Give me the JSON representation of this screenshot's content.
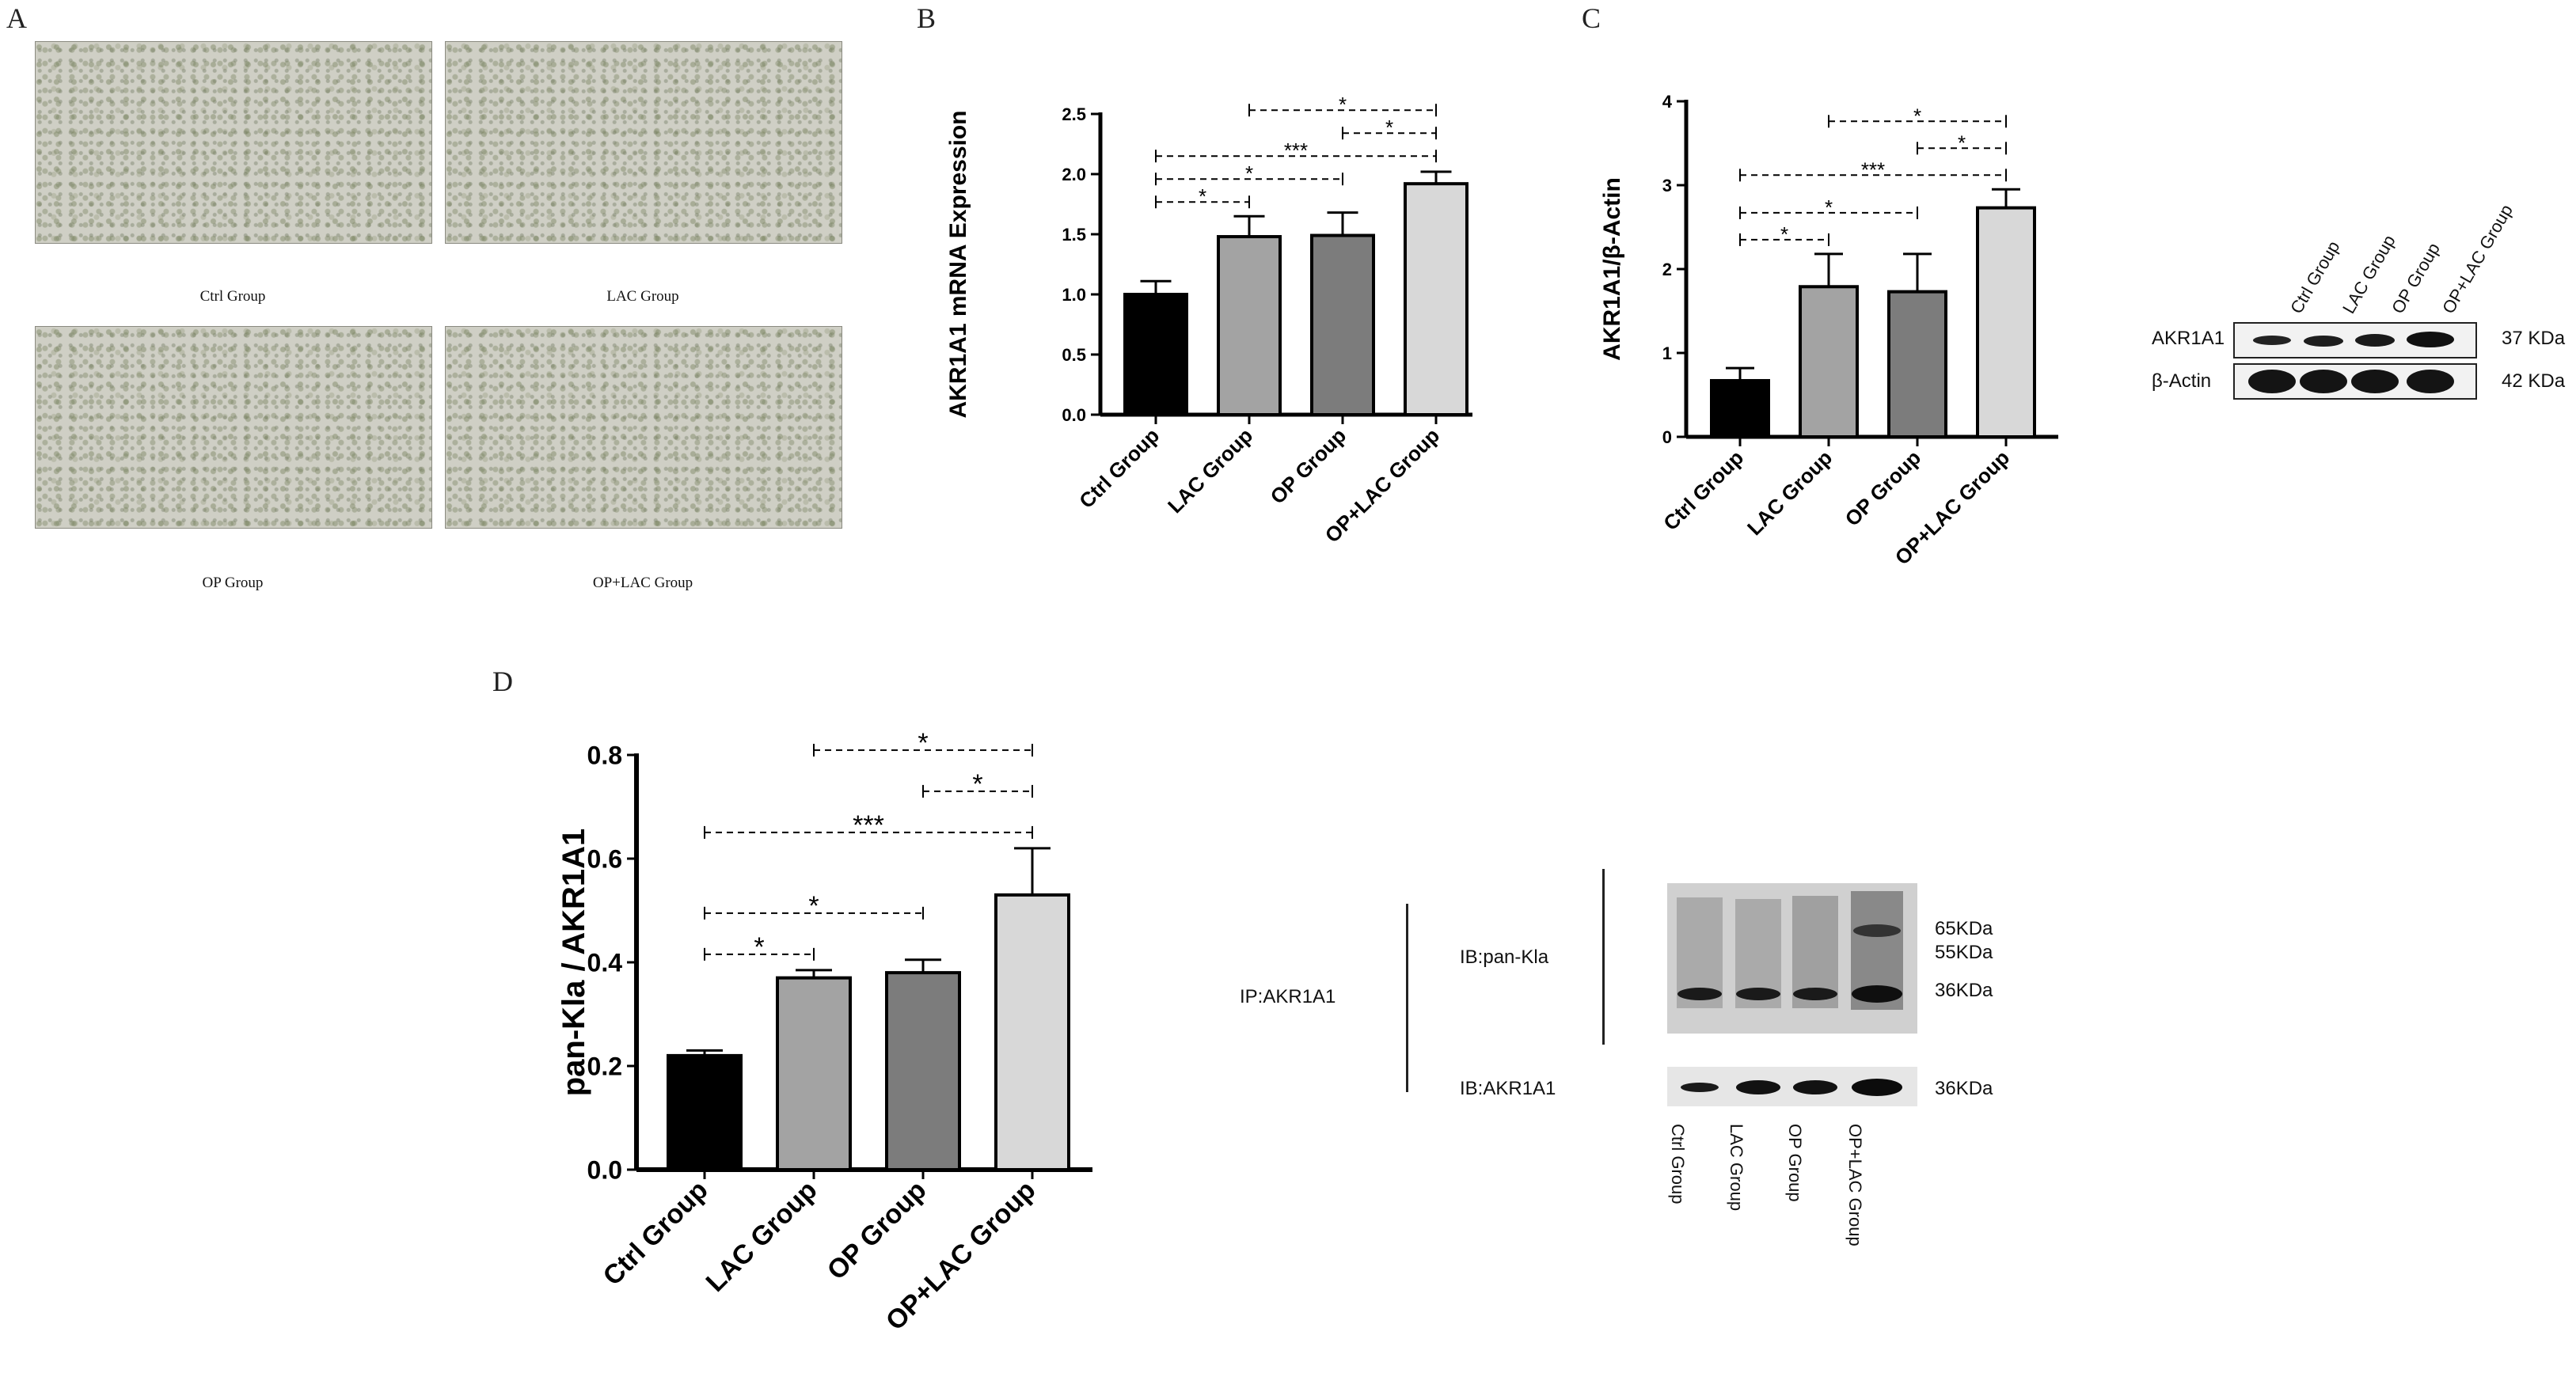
{
  "panel_letters": {
    "a": "A",
    "b": "B",
    "c": "C",
    "d": "D"
  },
  "micrographs": {
    "captions": [
      "Ctrl Group",
      "LAC Group",
      "OP Group",
      "OP+LAC Group"
    ]
  },
  "chart_data": [
    {
      "id": "B",
      "type": "bar",
      "title": "",
      "xlabel": "",
      "ylabel": "AKR1A1 mRNA Expression",
      "categories": [
        "Ctrl Group",
        "LAC Group",
        "OP Group",
        "OP+LAC Group"
      ],
      "values": [
        1.0,
        1.48,
        1.49,
        1.92
      ],
      "errors": [
        0.11,
        0.17,
        0.19,
        0.1
      ],
      "colors": [
        "#000000",
        "#a3a3a3",
        "#7c7c7c",
        "#d8d8d8"
      ],
      "ylim": [
        0,
        2.5
      ],
      "yticks": [
        "0.0",
        "0.5",
        "1.0",
        "1.5",
        "2.0",
        "2.5"
      ],
      "significance": [
        {
          "from": 0,
          "to": 1,
          "label": "*"
        },
        {
          "from": 0,
          "to": 2,
          "label": "*"
        },
        {
          "from": 0,
          "to": 3,
          "label": "***"
        },
        {
          "from": 2,
          "to": 3,
          "label": "*"
        },
        {
          "from": 1,
          "to": 3,
          "label": "*"
        }
      ]
    },
    {
      "id": "C",
      "type": "bar",
      "title": "",
      "xlabel": "",
      "ylabel": "AKR1A1/β-Actin",
      "categories": [
        "Ctrl Group",
        "LAC Group",
        "OP Group",
        "OP+LAC Group"
      ],
      "values": [
        0.67,
        1.79,
        1.73,
        2.73
      ],
      "errors": [
        0.15,
        0.39,
        0.45,
        0.22
      ],
      "colors": [
        "#000000",
        "#a3a3a3",
        "#7c7c7c",
        "#d8d8d8"
      ],
      "ylim": [
        0,
        4
      ],
      "yticks": [
        "0",
        "1",
        "2",
        "3",
        "4"
      ],
      "significance": [
        {
          "from": 0,
          "to": 1,
          "label": "*"
        },
        {
          "from": 0,
          "to": 2,
          "label": "*"
        },
        {
          "from": 0,
          "to": 3,
          "label": "***"
        },
        {
          "from": 2,
          "to": 3,
          "label": "*"
        },
        {
          "from": 1,
          "to": 3,
          "label": "*"
        }
      ]
    },
    {
      "id": "D",
      "type": "bar",
      "title": "",
      "xlabel": "",
      "ylabel": "pan-Kla / AKR1A1",
      "categories": [
        "Ctrl Group",
        "LAC Group",
        "OP Group",
        "OP+LAC Group"
      ],
      "values": [
        0.22,
        0.37,
        0.38,
        0.53
      ],
      "errors": [
        0.01,
        0.015,
        0.025,
        0.09
      ],
      "colors": [
        "#000000",
        "#a3a3a3",
        "#7c7c7c",
        "#d8d8d8"
      ],
      "ylim": [
        0,
        0.8
      ],
      "yticks": [
        "0.0",
        "0.2",
        "0.4",
        "0.6",
        "0.8"
      ],
      "significance": [
        {
          "from": 0,
          "to": 1,
          "label": "*"
        },
        {
          "from": 0,
          "to": 2,
          "label": "*"
        },
        {
          "from": 0,
          "to": 3,
          "label": "***"
        },
        {
          "from": 2,
          "to": 3,
          "label": "*"
        },
        {
          "from": 1,
          "to": 3,
          "label": "*"
        }
      ]
    }
  ],
  "western_c": {
    "lanes": [
      "Ctrl Group",
      "LAC Group",
      "OP Group",
      "OP+LAC Group"
    ],
    "rows": [
      {
        "label": "AKR1A1",
        "size": "37 KDa"
      },
      {
        "label": "β-Actin",
        "size": "42 KDa"
      }
    ]
  },
  "western_d": {
    "ip_label": "IP:AKR1A1",
    "ib_top": "IB:pan-Kla",
    "ib_bottom": "IB:AKR1A1",
    "top_sizes": [
      "65KDa",
      "55KDa",
      "36KDa"
    ],
    "bottom_size": "36KDa",
    "lanes": [
      "Ctrl Group",
      "LAC Group",
      "OP Group",
      "OP+LAC Group"
    ]
  }
}
